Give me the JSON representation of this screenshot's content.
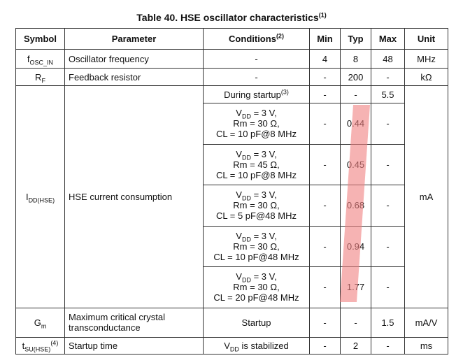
{
  "title": {
    "text": "Table 40. HSE oscillator characteristics",
    "sup": "(1)"
  },
  "table": {
    "header": {
      "symbol": "Symbol",
      "parameter": "Parameter",
      "conditions": "Conditions",
      "conditions_sup": "(2)",
      "min": "Min",
      "typ": "Typ",
      "max": "Max",
      "unit": "Unit"
    },
    "rows": [
      {
        "symbol": "f",
        "symbol_sub": "OSC_IN",
        "parameter": "Oscillator frequency",
        "conditions": "-",
        "min": "4",
        "typ": "8",
        "max": "48",
        "unit": "MHz"
      },
      {
        "symbol": "R",
        "symbol_sub": "F",
        "parameter": "Feedback resistor",
        "conditions": "-",
        "min": "-",
        "typ": "200",
        "max": "-",
        "unit": "kΩ"
      },
      {
        "symbol": "I",
        "symbol_sub": "DD(HSE)",
        "parameter": "HSE current consumption",
        "unit": "mA",
        "sub_rows": [
          {
            "conditions": "During startup",
            "conditions_sup": "(3)",
            "min": "-",
            "typ": "-",
            "max": "5.5"
          },
          {
            "cond_v": "V",
            "cond_v_sub": "DD",
            "cond_line1": " = 3 V,",
            "cond_line2": "Rm = 30 Ω,",
            "cond_line3": "CL = 10 pF@8 MHz",
            "min": "-",
            "typ": "0.44",
            "max": "-"
          },
          {
            "cond_v": "V",
            "cond_v_sub": "DD",
            "cond_line1": " = 3 V,",
            "cond_line2": "Rm = 45 Ω,",
            "cond_line3": "CL = 10 pF@8 MHz",
            "min": "-",
            "typ": "0.45",
            "max": "-"
          },
          {
            "cond_v": "V",
            "cond_v_sub": "DD",
            "cond_line1": " = 3 V,",
            "cond_line2": "Rm = 30 Ω,",
            "cond_line3": "CL = 5 pF@48 MHz",
            "min": "-",
            "typ": "0.68",
            "max": "-"
          },
          {
            "cond_v": "V",
            "cond_v_sub": "DD",
            "cond_line1": " = 3 V,",
            "cond_line2": "Rm = 30 Ω,",
            "cond_line3": "CL = 10 pF@48 MHz",
            "min": "-",
            "typ": "0.94",
            "max": "-"
          },
          {
            "cond_v": "V",
            "cond_v_sub": "DD",
            "cond_line1": " = 3 V,",
            "cond_line2": "Rm = 30 Ω,",
            "cond_line3": "CL = 20 pF@48 MHz",
            "min": "-",
            "typ": "1.77",
            "max": "-"
          }
        ]
      },
      {
        "symbol": "G",
        "symbol_sub": "m",
        "parameter": "Maximum critical crystal transconductance",
        "conditions": "Startup",
        "min": "-",
        "typ": "-",
        "max": "1.5",
        "unit": "mA/V"
      },
      {
        "symbol": "t",
        "symbol_sub": "SU(HSE)",
        "symbol_sup": "(4)",
        "parameter": "Startup time",
        "conditions": "V",
        "conditions_sub": "DD",
        "conditions_rest": " is stabilized",
        "min": "-",
        "typ": "2",
        "max": "-",
        "unit": "ms"
      }
    ]
  }
}
